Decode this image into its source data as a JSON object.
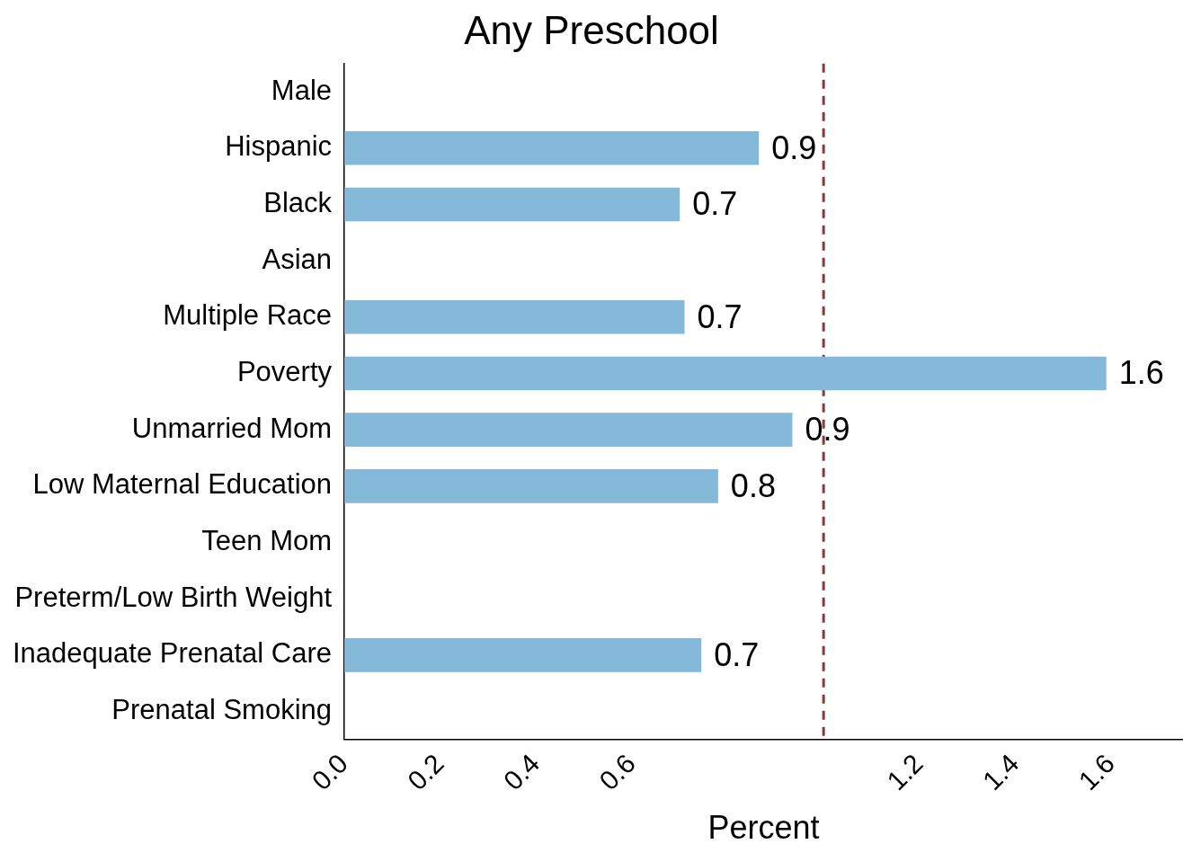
{
  "chart_data": {
    "type": "bar",
    "orientation": "horizontal",
    "title": "Any Preschool",
    "xlabel": "Percent",
    "categories": [
      "Male",
      "Hispanic",
      "Black",
      "Asian",
      "Multiple Race",
      "Poverty",
      "Unmarried Mom",
      "Low Maternal Education",
      "Teen Mom",
      "Preterm/Low Birth Weight",
      "Inadequate Prenatal Care",
      "Prenatal Smoking"
    ],
    "values": [
      null,
      0.865,
      0.7,
      null,
      0.71,
      1.59,
      0.935,
      0.78,
      null,
      null,
      0.745,
      null
    ],
    "value_labels": [
      null,
      "0.9",
      "0.7",
      null,
      "0.7",
      "1.6",
      "0.9",
      "0.8",
      null,
      null,
      "0.7",
      null
    ],
    "color": "#85b9d9",
    "xlim": [
      0,
      1.75
    ],
    "xticks": [
      {
        "value": 0,
        "label": "0.0"
      },
      0.2,
      0.4,
      0.6,
      1.2,
      1.4,
      1.6
    ],
    "ref_lines": [
      {
        "axis": "x",
        "value": 1.0,
        "color": "#8b3a3a",
        "line_style": "dashed"
      }
    ],
    "grid": false,
    "legend": false
  }
}
